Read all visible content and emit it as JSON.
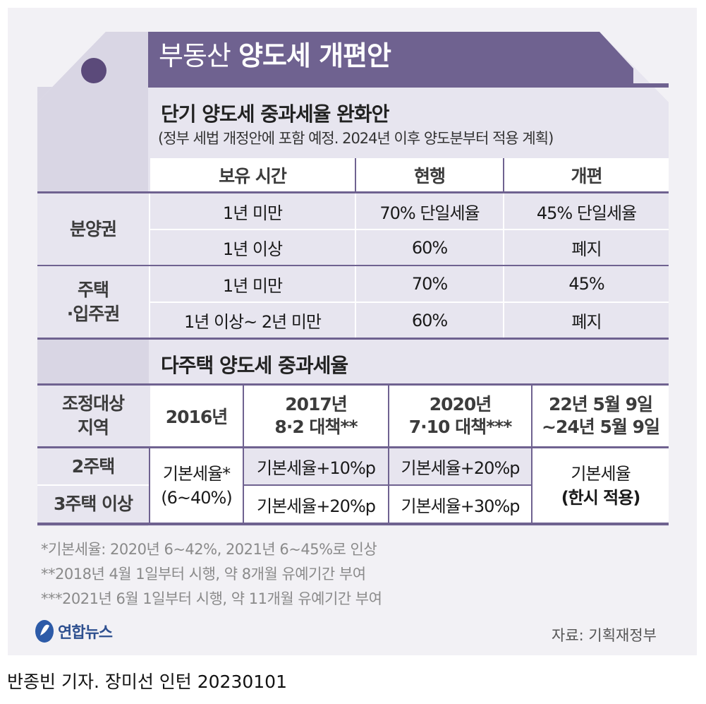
{
  "title": {
    "light": "부동산",
    "bold": "양도세 개편안"
  },
  "section1": {
    "title": "단기 양도세 중과세율 완화안",
    "subtitle": "(정부 세법 개정안에 포함 예정. 2024년 이후 양도분부터 적용 계획)",
    "headers": [
      "보유 시간",
      "현행",
      "개편"
    ],
    "groups": [
      {
        "label_lines": [
          "분양권"
        ],
        "rows": [
          {
            "period": "1년 미만",
            "current": "70% 단일세율",
            "reform": "45% 단일세율"
          },
          {
            "period": "1년 이상",
            "current": "60%",
            "reform": "폐지"
          }
        ]
      },
      {
        "label_lines": [
          "주택",
          "·입주권"
        ],
        "rows": [
          {
            "period": "1년 미만",
            "current": "70%",
            "reform": "45%"
          },
          {
            "period": "1년 이상~ 2년 미만",
            "current": "60%",
            "reform": "폐지"
          }
        ]
      }
    ]
  },
  "section2": {
    "title": "다주택 양도세 중과세율",
    "region_label_lines": [
      "조정대상",
      "지역"
    ],
    "columns": [
      {
        "lines": [
          "2016년"
        ]
      },
      {
        "lines": [
          "2017년",
          "8·2 대책**"
        ]
      },
      {
        "lines": [
          "2020년",
          "7·10 대책***"
        ]
      },
      {
        "lines": [
          "22년 5월 9일",
          "~24년 5월 9일"
        ]
      }
    ],
    "rows": [
      {
        "label": "2주택",
        "c2017": "기본세율+10%p",
        "c2020": "기본세율+20%p"
      },
      {
        "label": "3주택 이상",
        "c2017": "기본세율+20%p",
        "c2020": "기본세율+30%p"
      }
    ],
    "c2016_lines": [
      "기본세율*",
      "(6~40%)"
    ],
    "current_lines": [
      "기본세율",
      "(한시 적용)"
    ]
  },
  "footnotes": [
    "*기본세율: 2020년 6~42%, 2021년 6~45%로 인상",
    "**2018년 4월 1일부터 시행, 약 8개월 유예기간 부여",
    "***2021년 6월 1일부터 시행, 약 11개월 유예기간 부여"
  ],
  "logo_text": "연합뉴스",
  "source": "자료: 기획재정부",
  "caption": "반종빈 기자. 장미선 인턴  20230101",
  "colors": {
    "purple_dark": "#6f6290",
    "purple_light": "#e7e5ef",
    "bg": "#f2f1f5"
  }
}
